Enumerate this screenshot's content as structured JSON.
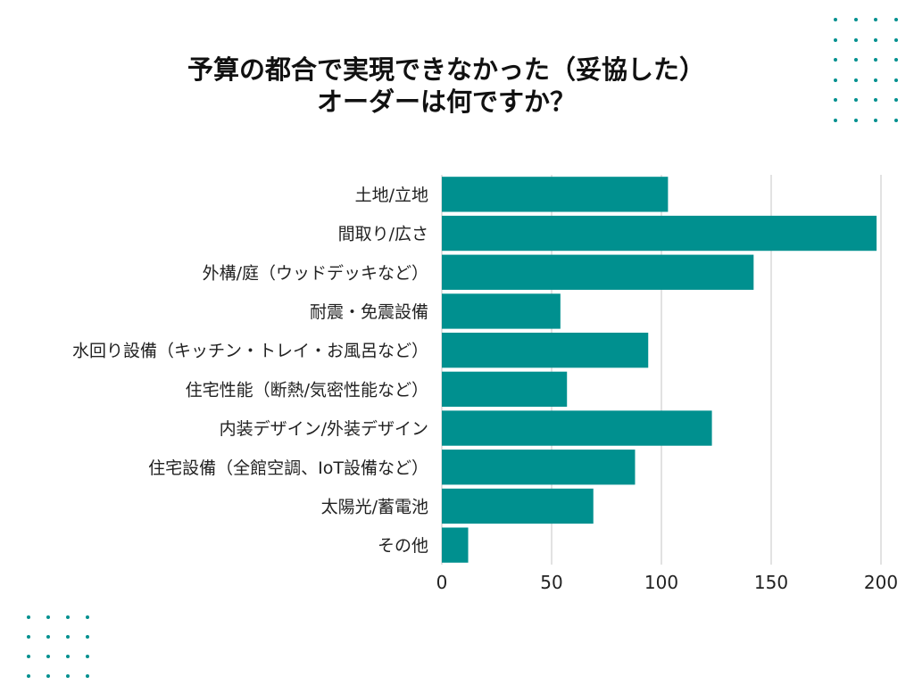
{
  "colors": {
    "bar": "#00908f",
    "dots": "#00908f",
    "grid": "#d9d9d9"
  },
  "chart_data": {
    "type": "bar",
    "orientation": "horizontal",
    "title_lines": [
      "予算の都合で実現できなかった（妥協した）",
      "オーダーは何ですか？"
    ],
    "categories": [
      "土地/立地",
      "間取り/広さ",
      "外構/庭（ウッドデッキなど）",
      "耐震・免震設備",
      "水回り設備（キッチン・トレイ・お風呂など）",
      "住宅性能（断熱/気密性能など）",
      "内装デザイン/外装デザイン",
      "住宅設備（全館空調、IoT設備など）",
      "太陽光/蓄電池",
      "その他"
    ],
    "values": [
      103,
      198,
      142,
      54,
      94,
      57,
      123,
      88,
      69,
      12
    ],
    "xlim": [
      0,
      200
    ],
    "xticks": [
      "0",
      "50",
      "100",
      "150",
      "200"
    ],
    "grid": true,
    "legend": "none"
  }
}
